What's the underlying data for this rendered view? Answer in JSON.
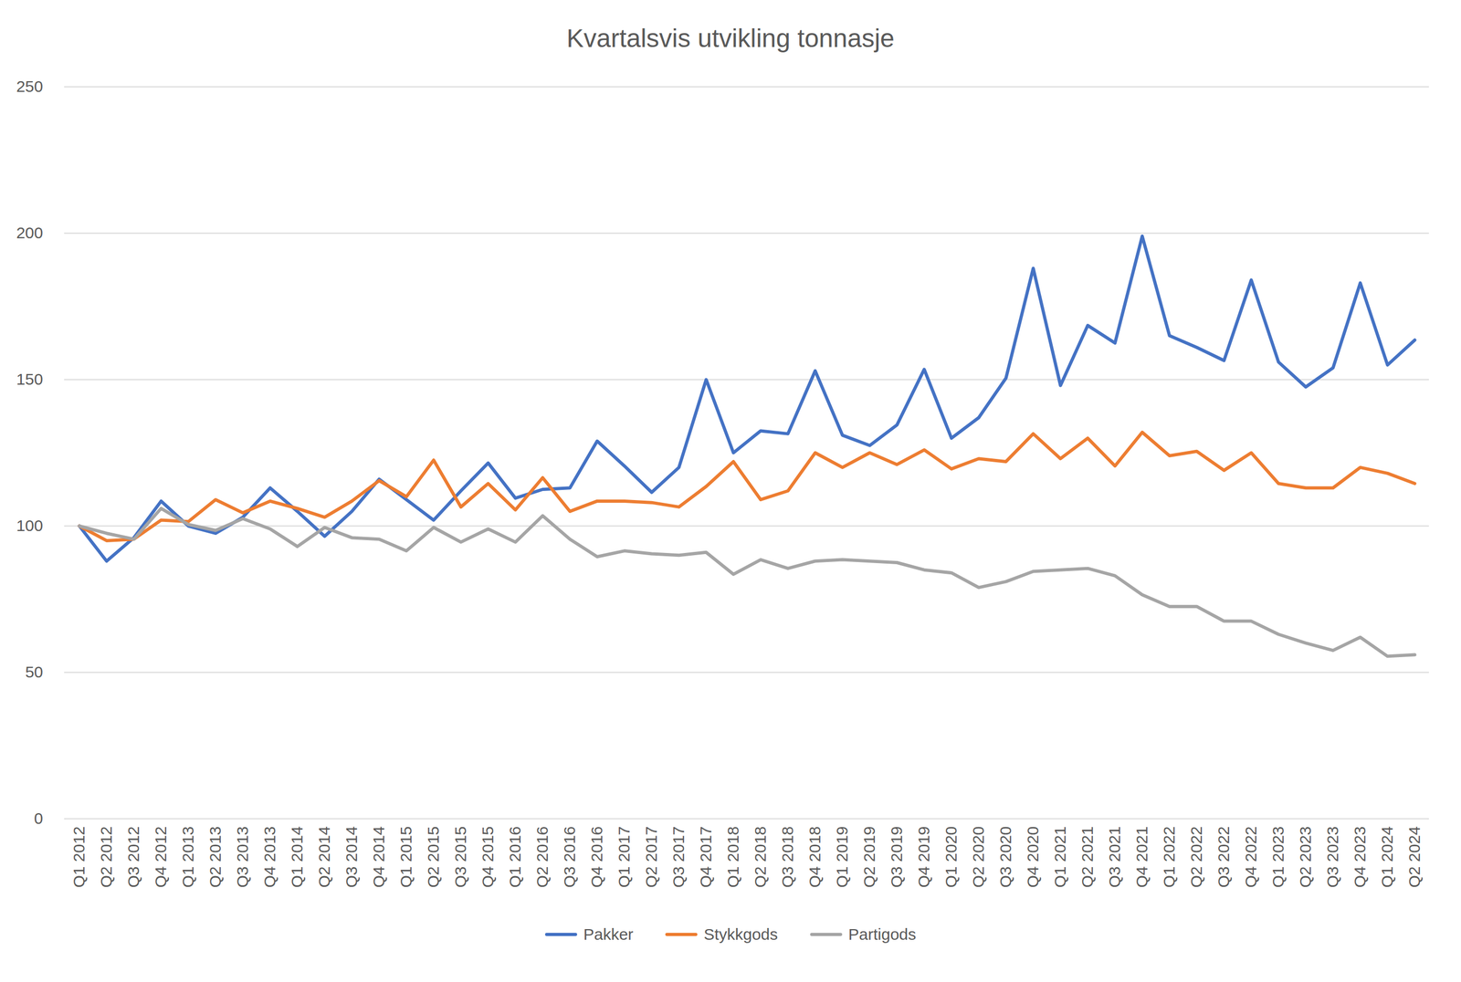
{
  "chart_data": {
    "type": "line",
    "title": "Kvartalsvis utvikling tonnasje",
    "categories": [
      "Q1 2012",
      "Q2 2012",
      "Q3 2012",
      "Q4 2012",
      "Q1 2013",
      "Q2 2013",
      "Q3 2013",
      "Q4 2013",
      "Q1 2014",
      "Q2 2014",
      "Q3 2014",
      "Q4 2014",
      "Q1 2015",
      "Q2 2015",
      "Q3 2015",
      "Q4 2015",
      "Q1 2016",
      "Q2 2016",
      "Q3 2016",
      "Q4 2016",
      "Q1 2017",
      "Q2 2017",
      "Q3 2017",
      "Q4 2017",
      "Q1 2018",
      "Q2 2018",
      "Q3 2018",
      "Q4 2018",
      "Q1 2019",
      "Q2 2019",
      "Q3 2019",
      "Q4 2019",
      "Q1 2020",
      "Q2 2020",
      "Q3 2020",
      "Q4 2020",
      "Q1 2021",
      "Q2 2021",
      "Q3 2021",
      "Q4 2021",
      "Q1 2022",
      "Q2 2022",
      "Q3 2022",
      "Q4 2022",
      "Q1 2023",
      "Q2 2023",
      "Q3 2023",
      "Q4 2023",
      "Q1 2024",
      "Q2 2024"
    ],
    "series": [
      {
        "name": "Pakker",
        "color": "#4472c4",
        "values": [
          100,
          88,
          96,
          108.5,
          100,
          97.5,
          103,
          113,
          105,
          96.5,
          105,
          116,
          109,
          102,
          112,
          121.5,
          109.5,
          112.5,
          113,
          129,
          120.5,
          111.5,
          120,
          150,
          125,
          132.5,
          131.5,
          153,
          131,
          127.5,
          134.5,
          153.5,
          130,
          137,
          150.5,
          188,
          148,
          168.5,
          162.5,
          199,
          165,
          161,
          156.5,
          184,
          156,
          147.5,
          154,
          183,
          155,
          163.5
        ]
      },
      {
        "name": "Stykkgods",
        "color": "#ed7d31",
        "values": [
          100,
          95,
          95.5,
          102,
          101.5,
          109,
          104.5,
          108.5,
          106,
          103,
          108.5,
          115.5,
          110,
          122.5,
          106.5,
          114.5,
          105.5,
          116.5,
          105,
          108.5,
          108.5,
          108,
          106.5,
          113.5,
          122,
          109,
          112,
          125,
          120,
          125,
          121,
          126,
          119.5,
          123,
          122,
          131.5,
          123,
          130,
          120.5,
          132,
          124,
          125.5,
          119,
          125,
          114.5,
          113,
          113,
          120,
          118,
          114.5
        ]
      },
      {
        "name": "Partigods",
        "color": "#a5a5a5",
        "values": [
          100,
          97.5,
          95.5,
          106,
          100.5,
          98.5,
          102.5,
          99,
          93,
          99.5,
          96,
          95.5,
          91.5,
          99.5,
          94.5,
          99,
          94.5,
          103.5,
          95.5,
          89.5,
          91.5,
          90.5,
          90,
          91,
          83.5,
          88.5,
          85.5,
          88,
          88.5,
          88,
          87.5,
          85,
          84,
          79,
          81,
          84.5,
          85,
          85.5,
          83,
          76.5,
          72.5,
          72.5,
          67.5,
          67.5,
          63,
          60,
          57.5,
          62,
          55.5,
          56
        ]
      }
    ],
    "ylim": [
      0,
      250
    ],
    "yticks": [
      0,
      50,
      100,
      150,
      200,
      250
    ],
    "grid": true,
    "legend": "bottom"
  }
}
